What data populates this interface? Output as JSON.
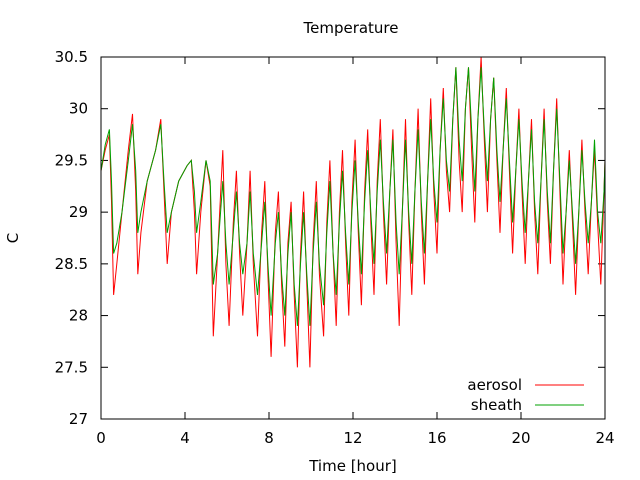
{
  "chart_data": {
    "type": "line",
    "title": "Temperature",
    "xlabel": "Time [hour]",
    "ylabel": "C",
    "xlim": [
      0,
      24
    ],
    "ylim": [
      27,
      30.5
    ],
    "x_ticks": [
      0,
      4,
      8,
      12,
      16,
      20,
      24
    ],
    "y_ticks": [
      27,
      27.5,
      28,
      28.5,
      29,
      29.5,
      30,
      30.5
    ],
    "x_tick_labels": [
      "0",
      "4",
      "8",
      "12",
      "16",
      "20",
      "24"
    ],
    "y_tick_labels": [
      "27",
      "27.5",
      "28",
      "28.5",
      "29",
      "29.5",
      "30",
      "30.5"
    ],
    "grid": false,
    "legend_position": "bottom-right",
    "series": [
      {
        "name": "aerosol",
        "color": "#ff0000",
        "points": [
          [
            0.0,
            29.4
          ],
          [
            0.2,
            29.6
          ],
          [
            0.4,
            29.75
          ],
          [
            0.5,
            29.1
          ],
          [
            0.6,
            28.2
          ],
          [
            0.75,
            28.5
          ],
          [
            1.0,
            29.0
          ],
          [
            1.3,
            29.6
          ],
          [
            1.5,
            29.95
          ],
          [
            1.65,
            29.2
          ],
          [
            1.75,
            28.4
          ],
          [
            1.9,
            28.8
          ],
          [
            2.2,
            29.3
          ],
          [
            2.6,
            29.6
          ],
          [
            2.85,
            29.9
          ],
          [
            3.0,
            29.2
          ],
          [
            3.15,
            28.5
          ],
          [
            3.35,
            29.0
          ],
          [
            3.7,
            29.3
          ],
          [
            4.1,
            29.45
          ],
          [
            4.3,
            29.5
          ],
          [
            4.45,
            29.0
          ],
          [
            4.55,
            28.4
          ],
          [
            4.75,
            29.0
          ],
          [
            5.0,
            29.5
          ],
          [
            5.2,
            29.25
          ],
          [
            5.35,
            27.8
          ],
          [
            5.55,
            28.6
          ],
          [
            5.8,
            29.6
          ],
          [
            5.95,
            28.5
          ],
          [
            6.1,
            27.9
          ],
          [
            6.3,
            28.9
          ],
          [
            6.45,
            29.4
          ],
          [
            6.6,
            28.6
          ],
          [
            6.75,
            28.0
          ],
          [
            6.95,
            28.7
          ],
          [
            7.1,
            29.4
          ],
          [
            7.25,
            28.5
          ],
          [
            7.45,
            27.8
          ],
          [
            7.65,
            28.8
          ],
          [
            7.8,
            29.3
          ],
          [
            7.95,
            28.4
          ],
          [
            8.1,
            27.6
          ],
          [
            8.3,
            28.8
          ],
          [
            8.45,
            29.2
          ],
          [
            8.6,
            28.3
          ],
          [
            8.75,
            27.7
          ],
          [
            8.9,
            28.7
          ],
          [
            9.05,
            29.1
          ],
          [
            9.2,
            28.2
          ],
          [
            9.35,
            27.5
          ],
          [
            9.5,
            28.6
          ],
          [
            9.65,
            29.2
          ],
          [
            9.8,
            28.3
          ],
          [
            9.95,
            27.5
          ],
          [
            10.1,
            28.7
          ],
          [
            10.25,
            29.3
          ],
          [
            10.4,
            28.4
          ],
          [
            10.6,
            27.8
          ],
          [
            10.75,
            28.9
          ],
          [
            10.9,
            29.5
          ],
          [
            11.05,
            28.6
          ],
          [
            11.2,
            27.9
          ],
          [
            11.35,
            29.0
          ],
          [
            11.5,
            29.6
          ],
          [
            11.65,
            28.7
          ],
          [
            11.8,
            28.0
          ],
          [
            11.95,
            29.1
          ],
          [
            12.1,
            29.7
          ],
          [
            12.25,
            28.8
          ],
          [
            12.4,
            28.1
          ],
          [
            12.55,
            29.2
          ],
          [
            12.7,
            29.8
          ],
          [
            12.85,
            28.9
          ],
          [
            13.0,
            28.2
          ],
          [
            13.15,
            29.3
          ],
          [
            13.3,
            29.9
          ],
          [
            13.45,
            29.0
          ],
          [
            13.6,
            28.3
          ],
          [
            13.75,
            29.2
          ],
          [
            13.9,
            29.8
          ],
          [
            14.05,
            28.7
          ],
          [
            14.2,
            27.9
          ],
          [
            14.35,
            29.0
          ],
          [
            14.5,
            29.9
          ],
          [
            14.65,
            28.9
          ],
          [
            14.8,
            28.2
          ],
          [
            14.95,
            29.2
          ],
          [
            15.1,
            30.0
          ],
          [
            15.25,
            29.0
          ],
          [
            15.4,
            28.3
          ],
          [
            15.55,
            29.3
          ],
          [
            15.7,
            30.1
          ],
          [
            15.85,
            29.2
          ],
          [
            16.0,
            28.6
          ],
          [
            16.15,
            29.6
          ],
          [
            16.3,
            30.2
          ],
          [
            16.45,
            29.4
          ],
          [
            16.6,
            29.0
          ],
          [
            16.75,
            29.9
          ],
          [
            16.9,
            30.4
          ],
          [
            17.05,
            29.5
          ],
          [
            17.2,
            29.0
          ],
          [
            17.35,
            30.0
          ],
          [
            17.5,
            30.4
          ],
          [
            17.65,
            29.6
          ],
          [
            17.8,
            28.9
          ],
          [
            17.95,
            29.9
          ],
          [
            18.1,
            30.5
          ],
          [
            18.25,
            29.7
          ],
          [
            18.4,
            29.0
          ],
          [
            18.55,
            29.9
          ],
          [
            18.7,
            30.3
          ],
          [
            18.85,
            29.5
          ],
          [
            19.0,
            28.8
          ],
          [
            19.15,
            29.6
          ],
          [
            19.3,
            30.2
          ],
          [
            19.45,
            29.4
          ],
          [
            19.6,
            28.6
          ],
          [
            19.75,
            29.4
          ],
          [
            19.9,
            30.0
          ],
          [
            20.05,
            29.2
          ],
          [
            20.2,
            28.5
          ],
          [
            20.35,
            29.3
          ],
          [
            20.5,
            29.9
          ],
          [
            20.65,
            29.0
          ],
          [
            20.8,
            28.4
          ],
          [
            20.95,
            29.3
          ],
          [
            21.1,
            30.0
          ],
          [
            21.25,
            29.1
          ],
          [
            21.4,
            28.5
          ],
          [
            21.55,
            29.4
          ],
          [
            21.7,
            30.1
          ],
          [
            21.85,
            29.2
          ],
          [
            22.0,
            28.3
          ],
          [
            22.15,
            29.0
          ],
          [
            22.3,
            29.6
          ],
          [
            22.45,
            28.9
          ],
          [
            22.6,
            28.2
          ],
          [
            22.75,
            29.0
          ],
          [
            22.9,
            29.7
          ],
          [
            23.05,
            29.0
          ],
          [
            23.2,
            28.4
          ],
          [
            23.35,
            29.1
          ],
          [
            23.5,
            29.6
          ],
          [
            23.65,
            28.9
          ],
          [
            23.8,
            28.3
          ],
          [
            23.95,
            29.2
          ],
          [
            24.0,
            29.5
          ]
        ]
      },
      {
        "name": "sheath",
        "color": "#00a000",
        "points": [
          [
            0.0,
            29.4
          ],
          [
            0.2,
            29.65
          ],
          [
            0.4,
            29.8
          ],
          [
            0.5,
            29.3
          ],
          [
            0.6,
            28.6
          ],
          [
            0.75,
            28.7
          ],
          [
            1.0,
            29.0
          ],
          [
            1.3,
            29.5
          ],
          [
            1.5,
            29.85
          ],
          [
            1.65,
            29.4
          ],
          [
            1.75,
            28.8
          ],
          [
            1.9,
            29.0
          ],
          [
            2.2,
            29.3
          ],
          [
            2.6,
            29.6
          ],
          [
            2.85,
            29.85
          ],
          [
            3.0,
            29.3
          ],
          [
            3.15,
            28.8
          ],
          [
            3.35,
            29.0
          ],
          [
            3.7,
            29.3
          ],
          [
            4.1,
            29.45
          ],
          [
            4.3,
            29.5
          ],
          [
            4.45,
            29.2
          ],
          [
            4.55,
            28.8
          ],
          [
            4.75,
            29.1
          ],
          [
            5.0,
            29.5
          ],
          [
            5.2,
            29.3
          ],
          [
            5.35,
            28.3
          ],
          [
            5.55,
            28.6
          ],
          [
            5.8,
            29.3
          ],
          [
            5.95,
            28.7
          ],
          [
            6.1,
            28.3
          ],
          [
            6.3,
            28.8
          ],
          [
            6.45,
            29.2
          ],
          [
            6.6,
            28.7
          ],
          [
            6.75,
            28.4
          ],
          [
            6.95,
            28.7
          ],
          [
            7.1,
            29.2
          ],
          [
            7.25,
            28.6
          ],
          [
            7.45,
            28.2
          ],
          [
            7.65,
            28.7
          ],
          [
            7.8,
            29.1
          ],
          [
            7.95,
            28.5
          ],
          [
            8.1,
            28.0
          ],
          [
            8.3,
            28.7
          ],
          [
            8.45,
            29.0
          ],
          [
            8.6,
            28.4
          ],
          [
            8.75,
            28.0
          ],
          [
            8.9,
            28.6
          ],
          [
            9.05,
            29.0
          ],
          [
            9.2,
            28.3
          ],
          [
            9.35,
            27.9
          ],
          [
            9.5,
            28.5
          ],
          [
            9.65,
            29.0
          ],
          [
            9.8,
            28.4
          ],
          [
            9.95,
            27.9
          ],
          [
            10.1,
            28.6
          ],
          [
            10.25,
            29.1
          ],
          [
            10.4,
            28.5
          ],
          [
            10.6,
            28.1
          ],
          [
            10.75,
            28.8
          ],
          [
            10.9,
            29.3
          ],
          [
            11.05,
            28.6
          ],
          [
            11.2,
            28.2
          ],
          [
            11.35,
            28.9
          ],
          [
            11.5,
            29.4
          ],
          [
            11.65,
            28.8
          ],
          [
            11.8,
            28.3
          ],
          [
            11.95,
            29.0
          ],
          [
            12.1,
            29.5
          ],
          [
            12.25,
            28.9
          ],
          [
            12.4,
            28.4
          ],
          [
            12.55,
            29.1
          ],
          [
            12.7,
            29.6
          ],
          [
            12.85,
            29.0
          ],
          [
            13.0,
            28.5
          ],
          [
            13.15,
            29.2
          ],
          [
            13.3,
            29.7
          ],
          [
            13.45,
            29.1
          ],
          [
            13.6,
            28.6
          ],
          [
            13.75,
            29.2
          ],
          [
            13.9,
            29.7
          ],
          [
            14.05,
            28.9
          ],
          [
            14.2,
            28.4
          ],
          [
            14.35,
            29.0
          ],
          [
            14.5,
            29.7
          ],
          [
            14.65,
            29.0
          ],
          [
            14.8,
            28.5
          ],
          [
            14.95,
            29.2
          ],
          [
            15.1,
            29.8
          ],
          [
            15.25,
            29.1
          ],
          [
            15.4,
            28.6
          ],
          [
            15.55,
            29.3
          ],
          [
            15.7,
            29.9
          ],
          [
            15.85,
            29.3
          ],
          [
            16.0,
            28.9
          ],
          [
            16.15,
            29.6
          ],
          [
            16.3,
            30.1
          ],
          [
            16.45,
            29.5
          ],
          [
            16.6,
            29.2
          ],
          [
            16.75,
            29.9
          ],
          [
            16.9,
            30.4
          ],
          [
            17.05,
            29.7
          ],
          [
            17.2,
            29.3
          ],
          [
            17.35,
            30.0
          ],
          [
            17.5,
            30.4
          ],
          [
            17.65,
            29.8
          ],
          [
            17.8,
            29.2
          ],
          [
            17.95,
            29.9
          ],
          [
            18.1,
            30.4
          ],
          [
            18.25,
            29.8
          ],
          [
            18.4,
            29.3
          ],
          [
            18.55,
            29.9
          ],
          [
            18.7,
            30.3
          ],
          [
            18.85,
            29.6
          ],
          [
            19.0,
            29.1
          ],
          [
            19.15,
            29.6
          ],
          [
            19.3,
            30.1
          ],
          [
            19.45,
            29.5
          ],
          [
            19.6,
            28.9
          ],
          [
            19.75,
            29.4
          ],
          [
            19.9,
            29.9
          ],
          [
            20.05,
            29.3
          ],
          [
            20.2,
            28.8
          ],
          [
            20.35,
            29.3
          ],
          [
            20.5,
            29.8
          ],
          [
            20.65,
            29.1
          ],
          [
            20.8,
            28.7
          ],
          [
            20.95,
            29.3
          ],
          [
            21.1,
            29.9
          ],
          [
            21.25,
            29.2
          ],
          [
            21.4,
            28.7
          ],
          [
            21.55,
            29.4
          ],
          [
            21.7,
            30.0
          ],
          [
            21.85,
            29.3
          ],
          [
            22.0,
            28.6
          ],
          [
            22.15,
            29.0
          ],
          [
            22.3,
            29.5
          ],
          [
            22.45,
            29.0
          ],
          [
            22.6,
            28.5
          ],
          [
            22.75,
            29.0
          ],
          [
            22.9,
            29.6
          ],
          [
            23.05,
            29.1
          ],
          [
            23.2,
            28.7
          ],
          [
            23.35,
            29.1
          ],
          [
            23.5,
            29.7
          ],
          [
            23.65,
            29.0
          ],
          [
            23.8,
            28.7
          ],
          [
            23.95,
            29.2
          ],
          [
            24.0,
            29.5
          ]
        ]
      }
    ]
  }
}
